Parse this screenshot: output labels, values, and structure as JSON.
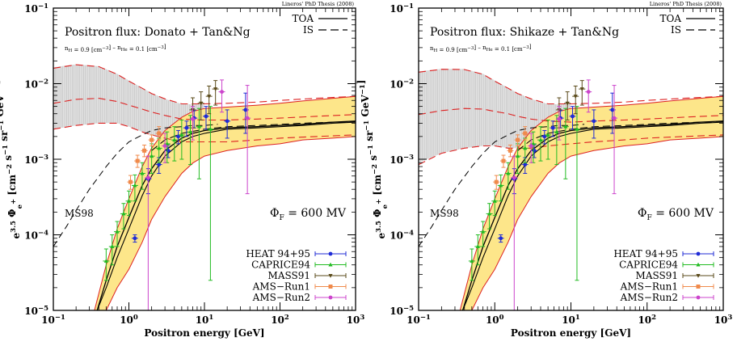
{
  "chart_data": [
    {
      "type": "line",
      "title": "Positron flux: Donato + Tan&Ng",
      "subtitle": "n_H = 0.9 [cm^-3]  –  n_He = 0.1 [cm^-3]",
      "credit": "Lineros' PhD Thesis (2008)",
      "xlabel": "Positron energy [GeV]",
      "ylabel": "e^3.5 Φe+ [cm^-2 s^-1 sr^-1 GeV^-1]",
      "xscale": "log",
      "yscale": "log",
      "xlim": [
        0.1,
        1000
      ],
      "ylim": [
        1e-05,
        0.1
      ],
      "annotations": [
        "MS98",
        "Φ_F = 600 MV"
      ],
      "legend_placement": "bottom-right"
    },
    {
      "type": "line",
      "title": "Positron flux: Shikaze + Tan&Ng",
      "subtitle": "n_H = 0.9 [cm^-3]  –  n_He = 0.1 [cm^-3]",
      "credit": "Lineros' PhD Thesis (2008)",
      "xlabel": "Positron energy [GeV]",
      "ylabel": "e^3.5 Φe+ [cm^-2 s^-1 sr^-1 GeV^-1]",
      "xscale": "log",
      "yscale": "log",
      "xlim": [
        0.1,
        1000
      ],
      "ylim": [
        1e-05,
        0.1
      ],
      "annotations": [
        "MS98",
        "Φ_F = 600 MV"
      ],
      "legend_placement": "bottom-right"
    }
  ],
  "shared": {
    "x_ticks": [
      {
        "v": 0.1,
        "label": "10",
        "exp": "−1"
      },
      {
        "v": 1,
        "label": "1",
        "exp": "0"
      },
      {
        "v": 10,
        "label": "10",
        "exp": "1"
      },
      {
        "v": 100,
        "label": "10",
        "exp": "2"
      },
      {
        "v": 1000,
        "label": "10",
        "exp": "3"
      }
    ],
    "y_ticks": [
      {
        "v": 1e-05,
        "label": "10",
        "exp": "−5"
      },
      {
        "v": 0.0001,
        "label": "10",
        "exp": "−4"
      },
      {
        "v": 0.001,
        "label": "10",
        "exp": "−3"
      },
      {
        "v": 0.01,
        "label": "10",
        "exp": "−2"
      },
      {
        "v": 0.1,
        "label": "10",
        "exp": "−1"
      }
    ],
    "line_legend": [
      {
        "name": "TOA",
        "style": "solid"
      },
      {
        "name": "IS",
        "style": "dashed"
      }
    ],
    "colors": {
      "band_fill": "#fde68a",
      "band_edge": "#dd2222",
      "is_band": "#d8d8d8",
      "is_edge": "#dd2222",
      "toa": "#000000",
      "ms98": "#000000"
    },
    "toa_band": {
      "x": [
        0.35,
        0.5,
        0.7,
        1,
        1.5,
        2,
        3,
        5,
        7,
        10,
        20,
        50,
        100,
        200,
        500,
        1000
      ],
      "upper": [
        1e-05,
        4e-05,
        0.00012,
        0.0003,
        0.0008,
        0.0014,
        0.0024,
        0.0036,
        0.0043,
        0.0047,
        0.0049,
        0.0052,
        0.0055,
        0.0059,
        0.0064,
        0.0068
      ],
      "lower": [
        1e-05,
        1e-05,
        2e-05,
        3.5e-05,
        8e-05,
        0.00016,
        0.00032,
        0.00065,
        0.00089,
        0.0011,
        0.0013,
        0.0015,
        0.0016,
        0.0018,
        0.0019,
        0.002
      ]
    },
    "toa_curves": {
      "x": [
        0.38,
        0.5,
        0.7,
        1,
        1.5,
        2,
        3,
        5,
        7,
        10,
        20,
        50,
        100,
        200,
        500,
        1000
      ],
      "central": [
        1e-05,
        2.5e-05,
        7e-05,
        0.00017,
        0.00045,
        0.00075,
        0.0013,
        0.0019,
        0.0022,
        0.0024,
        0.0026,
        0.0027,
        0.0028,
        0.0029,
        0.0031,
        0.0032
      ],
      "second": [
        1e-05,
        2e-05,
        5e-05,
        0.00012,
        0.00033,
        0.0006,
        0.0011,
        0.0017,
        0.002,
        0.0022,
        0.0025,
        0.0026,
        0.0027,
        0.0028,
        0.003,
        0.0031
      ]
    },
    "ms98": {
      "x": [
        0.1,
        0.15,
        0.2,
        0.3,
        0.5,
        0.7,
        1,
        1.5,
        2,
        3,
        5,
        7,
        10,
        15
      ],
      "y": [
        7e-05,
        0.00013,
        0.00021,
        0.0004,
        0.0008,
        0.0012,
        0.0017,
        0.0021,
        0.0024,
        0.0026,
        0.0027,
        0.0028,
        0.0028,
        0.0029
      ]
    },
    "is_central_dash": {
      "x": [
        2,
        3,
        5,
        10,
        20,
        50,
        100,
        200,
        500,
        1000
      ],
      "y": [
        0.0013,
        0.0018,
        0.0022,
        0.0025,
        0.0027,
        0.0028,
        0.0029,
        0.003,
        0.0031,
        0.0031
      ]
    },
    "series": [
      {
        "name": "HEAT 94+95",
        "color": "#1f2bd6",
        "marker": "circle",
        "x": [
          1.2,
          1.8,
          2.5,
          3.3,
          4.5,
          5.8,
          7.3,
          10.5,
          20,
          35
        ],
        "y": [
          9e-05,
          0.00055,
          0.00085,
          0.0013,
          0.002,
          0.0026,
          0.0035,
          0.0037,
          0.0032,
          0.0045
        ],
        "ylo": [
          8e-05,
          0.00035,
          0.00065,
          0.00105,
          0.0016,
          0.002,
          0.0026,
          0.0025,
          0.0019,
          0.0022
        ],
        "yhi": [
          0.0001,
          0.00075,
          0.00105,
          0.00155,
          0.0024,
          0.0032,
          0.0044,
          0.005,
          0.0045,
          0.0075
        ]
      },
      {
        "name": "CAPRICE94",
        "color": "#22bb22",
        "marker": "triangle",
        "x": [
          0.5,
          0.6,
          0.7,
          0.85,
          1.0,
          1.2,
          1.5,
          2.0,
          2.5,
          3.2,
          4.0,
          5.0,
          6.5,
          8.5,
          12
        ],
        "y": [
          4.5e-05,
          7e-05,
          0.00011,
          0.00019,
          0.00028,
          0.00045,
          0.00065,
          0.0011,
          0.0014,
          0.0016,
          0.0018,
          0.0021,
          0.0023,
          0.0027,
          0.0025
        ],
        "ylo": [
          2.5e-05,
          4e-05,
          7e-05,
          0.00012,
          0.00018,
          0.00028,
          0.0004,
          0.00065,
          0.0009,
          0.0009,
          0.00095,
          0.001,
          0.00085,
          0.00055,
          2.5e-05
        ],
        "yhi": [
          6.5e-05,
          0.0001,
          0.00015,
          0.00026,
          0.00038,
          0.00062,
          0.0009,
          0.0016,
          0.0019,
          0.0023,
          0.0027,
          0.0033,
          0.0038,
          0.0047,
          0.005
        ]
      },
      {
        "name": "MASS91",
        "color": "#5a4a1a",
        "marker": "triangle-down",
        "x": [
          7.0,
          9.0,
          11.5,
          14.0
        ],
        "y": [
          0.0045,
          0.0055,
          0.0068,
          0.0085
        ],
        "ylo": [
          0.0026,
          0.0033,
          0.004,
          0.0052
        ],
        "yhi": [
          0.0065,
          0.0078,
          0.0093,
          0.011
        ]
      },
      {
        "name": "AMS−Run1",
        "color": "#f08a4b",
        "marker": "square",
        "x": [
          1.05,
          1.3,
          1.6,
          2.0,
          2.5
        ],
        "y": [
          0.0005,
          0.00095,
          0.0013,
          0.0018,
          0.0022
        ],
        "ylo": [
          0.0004,
          0.00078,
          0.00108,
          0.0015,
          0.0018
        ],
        "yhi": [
          0.00061,
          0.00113,
          0.00154,
          0.0021,
          0.0027
        ]
      },
      {
        "name": "AMS−Run2",
        "color": "#cc44cc",
        "marker": "circle",
        "x": [
          1.8,
          3.0,
          7.0,
          17.0,
          37.0
        ],
        "y": [
          0.00057,
          0.0015,
          0.0034,
          0.0078,
          0.0035
        ],
        "ylo": [
          1e-05,
          0.0009,
          0.0018,
          0.0042,
          0.00035
        ],
        "yhi": [
          0.0011,
          0.0022,
          0.005,
          0.0112,
          0.0095
        ]
      }
    ]
  }
}
